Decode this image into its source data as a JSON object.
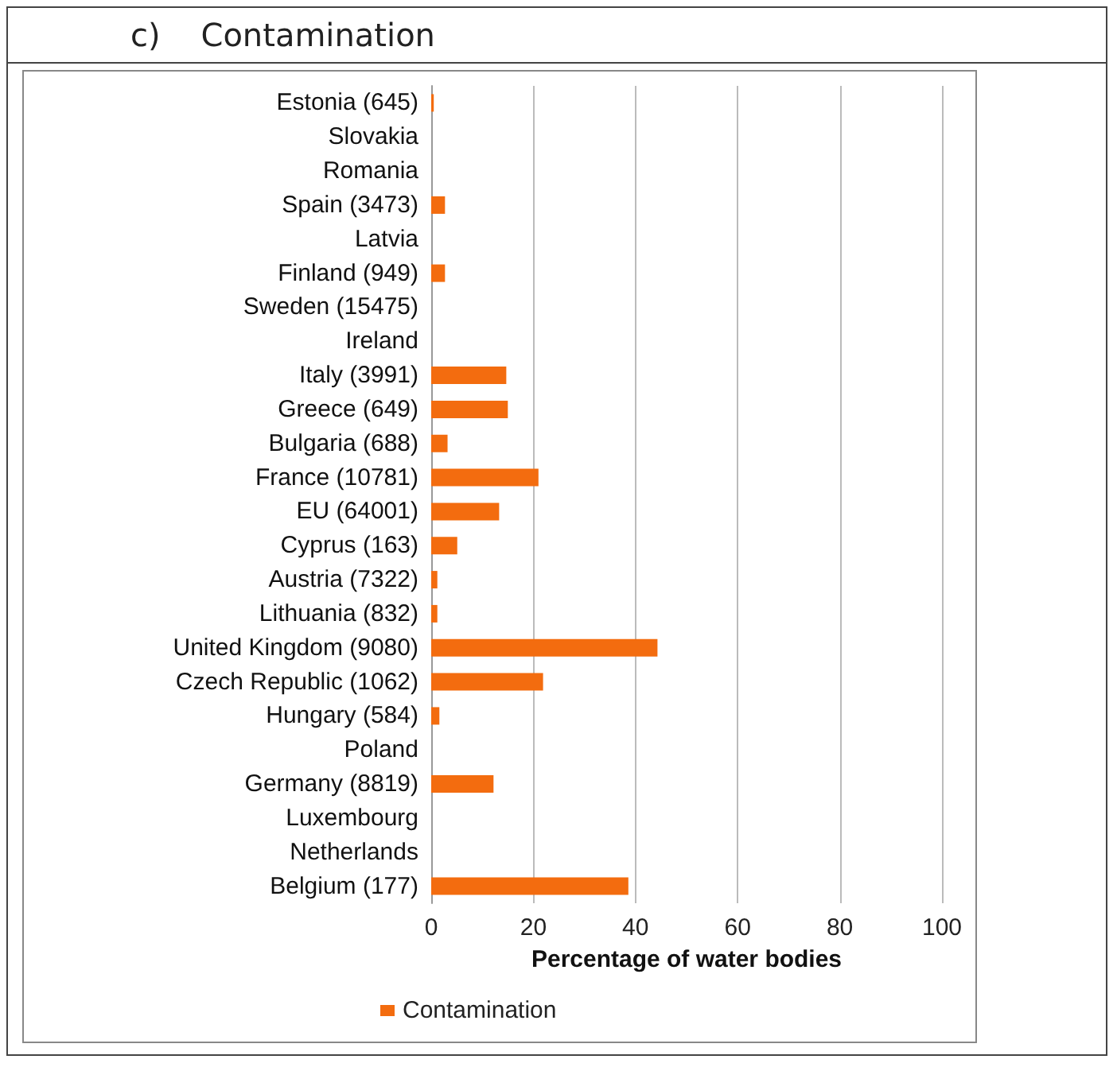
{
  "chart_data": {
    "type": "bar",
    "orientation": "horizontal",
    "title": "c)    Contamination",
    "xlabel": "Percentage of water bodies",
    "categories": [
      "Estonia (645)",
      "Slovakia",
      "Romania",
      "Spain (3473)",
      "Latvia",
      "Finland (949)",
      "Sweden (15475)",
      "Ireland",
      "Italy (3991)",
      "Greece (649)",
      "Bulgaria (688)",
      "France (10781)",
      "EU (64001)",
      "Cyprus (163)",
      "Austria (7322)",
      "Lithuania (832)",
      "United Kingdom (9080)",
      "Czech Republic (1062)",
      "Hungary (584)",
      "Poland",
      "Germany (8819)",
      "Luxembourg",
      "Netherlands",
      "Belgium (177)"
    ],
    "series": [
      {
        "name": "Contamination",
        "color": "#f36c0f",
        "values": [
          0.5,
          0,
          0,
          2.7,
          0,
          2.7,
          0,
          0,
          14.7,
          15,
          3.2,
          21,
          13.3,
          5.1,
          1.2,
          1.2,
          44.3,
          21.9,
          1.6,
          0,
          12.2,
          0,
          0,
          38.6
        ]
      }
    ],
    "xlim": [
      0,
      100
    ],
    "xticks": [
      0,
      20,
      40,
      60,
      80,
      100
    ],
    "grid": "x",
    "legend": "bottom"
  }
}
